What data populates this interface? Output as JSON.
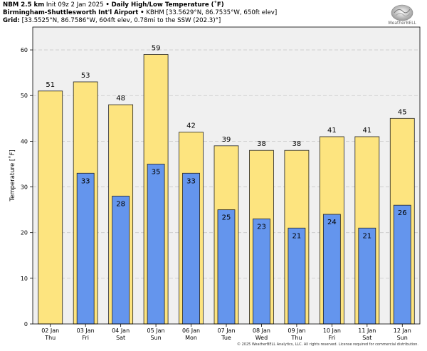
{
  "header": {
    "line1_model": "NBM 2.5 km",
    "line1_init": "Init 09z 2 Jan 2025",
    "line1_sep": "•",
    "line1_product": "Daily High/Low Temperature (˚F)",
    "line2_station": "Birmingham-Shuttlesworth Int'l Airport",
    "line2_sep": "•",
    "line2_detail": "KBHM [33.5629°N, 86.7535°W, 650ft elev]",
    "line3_label": "Grid:",
    "line3_detail": "[33.5525°N, 86.7586°W, 604ft elev, 0.78mi to the SSW (202.3)°]"
  },
  "logo": {
    "text": "WeatherBELL"
  },
  "footer": {
    "copyright": "© 2025 WeatherBELL Analytics, LLC. All rights reserved. License required for commercial distribution."
  },
  "chart_data": {
    "type": "bar",
    "ylabel": "Temperature [˚F]",
    "ylim": [
      0,
      65
    ],
    "yticks": [
      0,
      10,
      20,
      30,
      40,
      50,
      60
    ],
    "grid": true,
    "categories": [
      {
        "date": "02 Jan",
        "day": "Thu"
      },
      {
        "date": "03 Jan",
        "day": "Fri"
      },
      {
        "date": "04 Jan",
        "day": "Sat"
      },
      {
        "date": "05 Jan",
        "day": "Sun"
      },
      {
        "date": "06 Jan",
        "day": "Mon"
      },
      {
        "date": "07 Jan",
        "day": "Tue"
      },
      {
        "date": "08 Jan",
        "day": "Wed"
      },
      {
        "date": "09 Jan",
        "day": "Thu"
      },
      {
        "date": "10 Jan",
        "day": "Fri"
      },
      {
        "date": "11 Jan",
        "day": "Sat"
      },
      {
        "date": "12 Jan",
        "day": "Sun"
      }
    ],
    "series": [
      {
        "key": "high",
        "color": "#fde47f",
        "values": [
          51,
          53,
          48,
          59,
          42,
          39,
          38,
          38,
          41,
          41,
          45
        ]
      },
      {
        "key": "low",
        "color": "#6495ed",
        "values": [
          null,
          33,
          28,
          35,
          33,
          25,
          23,
          21,
          24,
          21,
          26
        ]
      }
    ]
  }
}
